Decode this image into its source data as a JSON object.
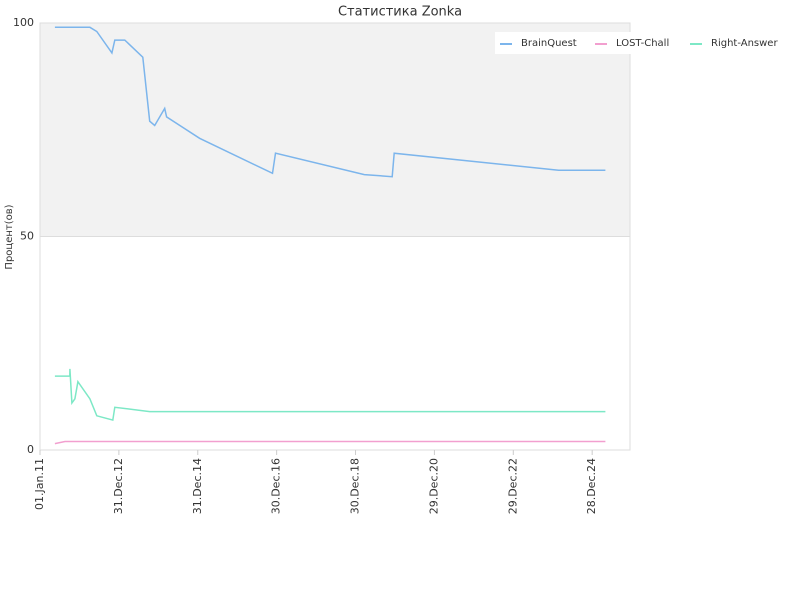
{
  "chart_data": {
    "type": "line",
    "title": "Статистика Zonka",
    "y_label": "Процент(ов)",
    "xlim": [
      "2011-01-01",
      "2025-12-13"
    ],
    "xticks": [
      {
        "value": "2011-01-01",
        "label": "01.Jan.11"
      },
      {
        "value": "2012-12-31",
        "label": "31.Dec.12"
      },
      {
        "value": "2014-12-31",
        "label": "31.Dec.14"
      },
      {
        "value": "2016-12-30",
        "label": "30.Dec.16"
      },
      {
        "value": "2018-12-30",
        "label": "30.Dec.18"
      },
      {
        "value": "2020-12-29",
        "label": "29.Dec.20"
      },
      {
        "value": "2022-12-29",
        "label": "29.Dec.22"
      },
      {
        "value": "2024-12-28",
        "label": "28.Dec.24"
      }
    ],
    "ylim": [
      0,
      100
    ],
    "yticks": [
      0,
      50,
      100
    ],
    "grid": true,
    "legend": "top-right",
    "series": [
      {
        "name": "BrainQuest",
        "color": "#7cb5ec",
        "x": [
          "2011-05-19",
          "2011-10-05",
          "2012-04-07",
          "2012-06-10",
          "2012-10-27",
          "2012-11-23",
          "2013-02-24",
          "2013-08-09",
          "2013-10-12",
          "2013-11-27",
          "2014-02-28",
          "2014-03-18",
          "2015-01-17",
          "2016-11-22",
          "2016-12-19",
          "2019-03-21",
          "2019-12-04",
          "2019-12-23",
          "2024-02-21",
          "2025-04-29"
        ],
        "values": [
          99,
          99,
          99,
          98,
          93,
          96,
          96,
          92,
          77,
          76,
          80,
          78,
          73,
          64.8,
          69.5,
          64.5,
          64,
          69.5,
          65.5,
          65.5
        ]
      },
      {
        "name": "LOST-Chall",
        "color": "#f29fcf",
        "x": [
          "2011-05-19",
          "2011-08-20",
          "2025-04-29"
        ],
        "values": [
          1.5,
          2,
          2
        ]
      },
      {
        "name": "Right-Answer",
        "color": "#7de8c6",
        "x": [
          "2011-05-19",
          "2011-10-04",
          "2011-10-05",
          "2011-10-23",
          "2011-11-20",
          "2011-12-18",
          "2012-04-07",
          "2012-06-10",
          "2012-11-05",
          "2012-11-23",
          "2013-10-12",
          "2025-04-29"
        ],
        "values": [
          17.3,
          17.3,
          19,
          11,
          12,
          16,
          12,
          8,
          7,
          10,
          9,
          9
        ]
      }
    ]
  }
}
